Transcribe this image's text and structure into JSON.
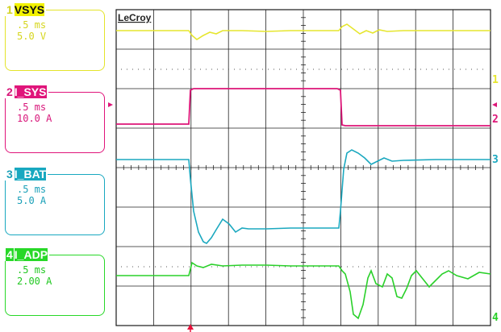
{
  "brand": "LeCroy",
  "channels": [
    {
      "num": "1",
      "name": "VSYS",
      "timebase": ".5 ms",
      "scale": "5.0 V",
      "color": "#d2d21e",
      "bg": "#f2f200"
    },
    {
      "num": "2",
      "name": "I_SYS",
      "timebase": ".5 ms",
      "scale": "10.0 A",
      "color": "#d8167a",
      "bg": "#e0147a"
    },
    {
      "num": "3",
      "name": "I_BAT",
      "timebase": ".5 ms",
      "scale": "5.0 A",
      "color": "#1aa0b8",
      "bg": "#18a8c0"
    },
    {
      "num": "4",
      "name": "I_ADP",
      "timebase": ".5 ms",
      "scale": "2.00 A",
      "color": "#2ccf2c",
      "bg": "#28d828"
    }
  ],
  "trace_markers": [
    "1",
    "2",
    "3",
    "4"
  ],
  "accent_trigger": "#e8103a"
}
